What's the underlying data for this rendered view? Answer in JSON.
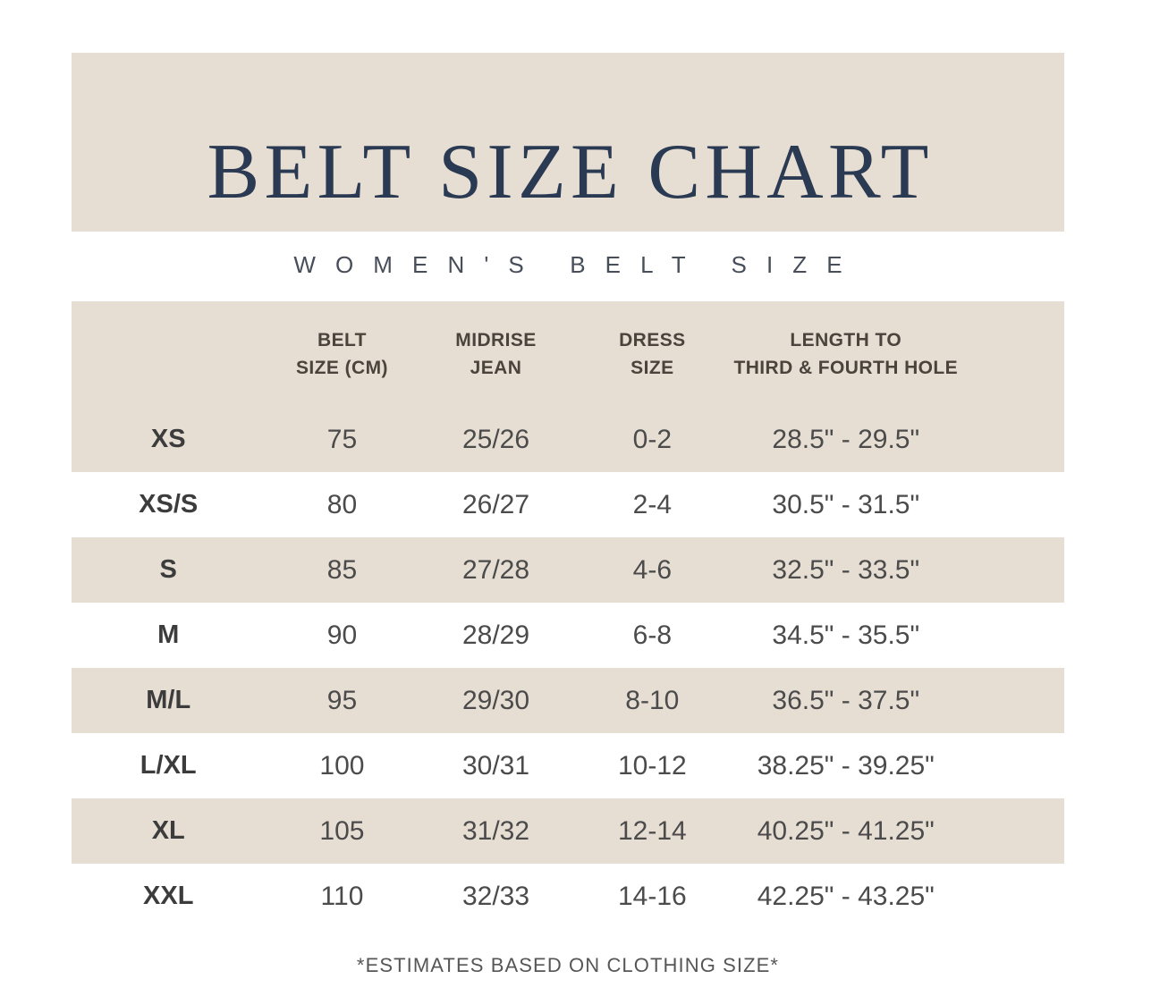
{
  "colors": {
    "banner_background": "#e7ded3",
    "row_alt_background": "#e7ded3",
    "title_navy": "#2b3a53",
    "body_text": "#4b4b4b"
  },
  "title_block": {
    "title": "BELT SIZE CHART"
  },
  "subtitle": "WOMEN'S BELT SIZE",
  "table": {
    "columns": [
      {
        "line1": "",
        "line2": ""
      },
      {
        "line1": "BELT",
        "line2": "SIZE (CM)"
      },
      {
        "line1": "MIDRISE",
        "line2": "JEAN"
      },
      {
        "line1": "DRESS",
        "line2": "SIZE"
      },
      {
        "line1": "LENGTH TO",
        "line2": "THIRD & FOURTH HOLE"
      }
    ],
    "rows": [
      {
        "size": "XS",
        "belt_cm": "75",
        "midrise_jean": "25/26",
        "dress_size": "0-2",
        "length": "28.5\" - 29.5\""
      },
      {
        "size": "XS/S",
        "belt_cm": "80",
        "midrise_jean": "26/27",
        "dress_size": "2-4",
        "length": "30.5\" - 31.5\""
      },
      {
        "size": "S",
        "belt_cm": "85",
        "midrise_jean": "27/28",
        "dress_size": "4-6",
        "length": "32.5\" - 33.5\""
      },
      {
        "size": "M",
        "belt_cm": "90",
        "midrise_jean": "28/29",
        "dress_size": "6-8",
        "length": "34.5\" - 35.5\""
      },
      {
        "size": "M/L",
        "belt_cm": "95",
        "midrise_jean": "29/30",
        "dress_size": "8-10",
        "length": "36.5\" - 37.5\""
      },
      {
        "size": "L/XL",
        "belt_cm": "100",
        "midrise_jean": "30/31",
        "dress_size": "10-12",
        "length": "38.25\" - 39.25\""
      },
      {
        "size": "XL",
        "belt_cm": "105",
        "midrise_jean": "31/32",
        "dress_size": "12-14",
        "length": "40.25\" - 41.25\""
      },
      {
        "size": "XXL",
        "belt_cm": "110",
        "midrise_jean": "32/33",
        "dress_size": "14-16",
        "length": "42.25\" - 43.25\""
      }
    ]
  },
  "footer": {
    "note": "*ESTIMATES BASED ON CLOTHING SIZE*"
  },
  "chart_data": {
    "type": "table",
    "title": "BELT SIZE CHART",
    "subtitle": "WOMEN'S BELT SIZE",
    "columns": [
      "",
      "BELT SIZE (CM)",
      "MIDRISE JEAN",
      "DRESS SIZE",
      "LENGTH TO THIRD & FOURTH HOLE"
    ],
    "rows": [
      [
        "XS",
        75,
        "25/26",
        "0-2",
        "28.5\" - 29.5\""
      ],
      [
        "XS/S",
        80,
        "26/27",
        "2-4",
        "30.5\" - 31.5\""
      ],
      [
        "S",
        85,
        "27/28",
        "4-6",
        "32.5\" - 33.5\""
      ],
      [
        "M",
        90,
        "28/29",
        "6-8",
        "34.5\" - 35.5\""
      ],
      [
        "M/L",
        95,
        "29/30",
        "8-10",
        "36.5\" - 37.5\""
      ],
      [
        "L/XL",
        100,
        "30/31",
        "10-12",
        "38.25\" - 39.25\""
      ],
      [
        "XL",
        105,
        "31/32",
        "12-14",
        "40.25\" - 41.25\""
      ],
      [
        "XXL",
        110,
        "32/33",
        "14-16",
        "42.25\" - 43.25\""
      ]
    ],
    "footnote": "*ESTIMATES BASED ON CLOTHING SIZE*"
  }
}
